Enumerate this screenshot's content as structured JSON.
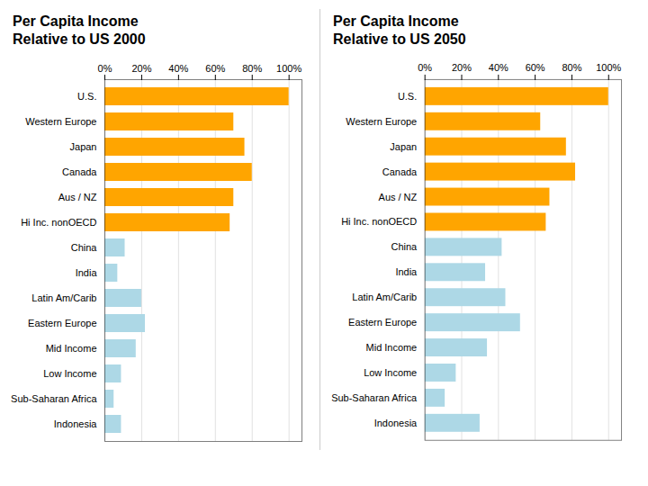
{
  "chart_data": [
    {
      "type": "bar",
      "orientation": "horizontal",
      "title": "Per Capita Income\nRelative to US 2000",
      "categories": [
        "U.S.",
        "Western Europe",
        "Japan",
        "Canada",
        "Aus / NZ",
        "Hi Inc. nonOECD",
        "China",
        "India",
        "Latin Am/Carib",
        "Eastern Europe",
        "Mid Income",
        "Low Income",
        "Sub-Saharan Africa",
        "Indonesia"
      ],
      "values": [
        100,
        70,
        76,
        80,
        70,
        68,
        11,
        7,
        20,
        22,
        17,
        9,
        5,
        9
      ],
      "colors": [
        "#FFA500",
        "#FFA500",
        "#FFA500",
        "#FFA500",
        "#FFA500",
        "#FFA500",
        "#ADD8E6",
        "#ADD8E6",
        "#ADD8E6",
        "#ADD8E6",
        "#ADD8E6",
        "#ADD8E6",
        "#ADD8E6",
        "#ADD8E6"
      ],
      "xlim": [
        0,
        107
      ],
      "xticks": [
        {
          "value": 0,
          "label": "0%"
        },
        {
          "value": 20,
          "label": "20%"
        },
        {
          "value": 40,
          "label": "40%"
        },
        {
          "value": 60,
          "label": "60%"
        },
        {
          "value": 80,
          "label": "80%"
        },
        {
          "value": 100,
          "label": "100%"
        }
      ],
      "grid": true
    },
    {
      "type": "bar",
      "orientation": "horizontal",
      "title": "Per Capita Income\nRelative to US 2050",
      "categories": [
        "U.S.",
        "Western Europe",
        "Japan",
        "Canada",
        "Aus / NZ",
        "Hi Inc. nonOECD",
        "China",
        "India",
        "Latin Am/Carib",
        "Eastern Europe",
        "Mid Income",
        "Low Income",
        "Sub-Saharan Africa",
        "Indonesia"
      ],
      "values": [
        100,
        63,
        77,
        82,
        68,
        66,
        42,
        33,
        44,
        52,
        34,
        17,
        11,
        30
      ],
      "colors": [
        "#FFA500",
        "#FFA500",
        "#FFA500",
        "#FFA500",
        "#FFA500",
        "#FFA500",
        "#ADD8E6",
        "#ADD8E6",
        "#ADD8E6",
        "#ADD8E6",
        "#ADD8E6",
        "#ADD8E6",
        "#ADD8E6",
        "#ADD8E6"
      ],
      "xlim": [
        0,
        107
      ],
      "xticks": [
        {
          "value": 0,
          "label": "0%"
        },
        {
          "value": 20,
          "label": "20%"
        },
        {
          "value": 40,
          "label": "40%"
        },
        {
          "value": 60,
          "label": "60%"
        },
        {
          "value": 80,
          "label": "80%"
        },
        {
          "value": 100,
          "label": "100%"
        }
      ],
      "grid": true
    }
  ]
}
